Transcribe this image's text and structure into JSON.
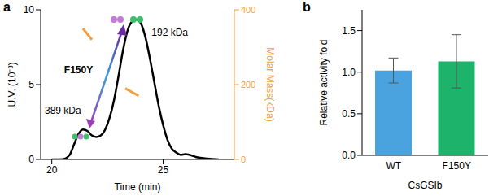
{
  "chart_data": [
    {
      "type": "line",
      "panel_label": "a",
      "x_label": "Time (min)",
      "y_label": "U.V. (10⁻³)",
      "y2_label": "Molar Mass(kDa)",
      "xlim": [
        19.5,
        28.2
      ],
      "xticks": [
        20,
        25
      ],
      "ylim": [
        0,
        10
      ],
      "yticks": [
        0,
        5,
        10
      ],
      "y2lim": [
        0,
        400
      ],
      "y2ticks": [
        0,
        200,
        400
      ],
      "grid": false,
      "series": [
        {
          "color": "#000000",
          "axis": "y",
          "x": [
            20.0,
            20.5,
            20.8,
            21.0,
            21.2,
            21.4,
            21.6,
            21.8,
            22.0,
            22.2,
            22.4,
            22.6,
            22.8,
            23.0,
            23.2,
            23.4,
            23.6,
            23.8,
            23.9,
            24.0,
            24.2,
            24.4,
            24.6,
            24.8,
            25.0,
            25.2,
            25.4,
            25.6,
            25.8,
            26.0,
            26.2,
            26.5,
            27.0,
            27.5
          ],
          "values": [
            0,
            0.02,
            0.3,
            1.0,
            1.7,
            2.0,
            1.9,
            1.6,
            1.5,
            1.6,
            2.0,
            2.8,
            4.0,
            5.6,
            7.3,
            8.6,
            9.2,
            9.35,
            9.3,
            9.1,
            8.2,
            6.8,
            5.2,
            3.6,
            2.3,
            1.3,
            0.7,
            0.45,
            0.3,
            0.35,
            0.3,
            0.15,
            0.05,
            0
          ]
        },
        {
          "color": "#f0a040",
          "axis": "y2",
          "x": [
            21.4,
            21.6,
            21.8,
            22.5,
            23.3,
            23.6,
            23.9
          ],
          "values": [
            350,
            335,
            320,
            null,
            190,
            180,
            170
          ]
        }
      ],
      "annotations": [
        {
          "text": "F150Y",
          "x": 21.2,
          "y": 6.0
        },
        {
          "text": "389 kDa",
          "x": 20.5,
          "y": 3.3
        },
        {
          "text": "192 kDa",
          "x": 25.3,
          "y": 8.5
        }
      ]
    },
    {
      "type": "bar",
      "panel_label": "b",
      "x_label": "CsGSIb",
      "y_label": "Relative activity fold",
      "categories": [
        "WT",
        "F150Y"
      ],
      "values": [
        1.02,
        1.13
      ],
      "errors": [
        0.15,
        0.32
      ],
      "colors": [
        "#4aa3df",
        "#1db36b"
      ],
      "ylim": [
        0,
        1.75
      ],
      "yticks": [
        {
          "value": 0,
          "label": "0.0"
        },
        {
          "value": 0.5,
          "label": "0.5"
        },
        {
          "value": 1,
          "label": "1.0"
        },
        {
          "value": 1.5,
          "label": "1.5"
        }
      ],
      "grid": false
    }
  ]
}
